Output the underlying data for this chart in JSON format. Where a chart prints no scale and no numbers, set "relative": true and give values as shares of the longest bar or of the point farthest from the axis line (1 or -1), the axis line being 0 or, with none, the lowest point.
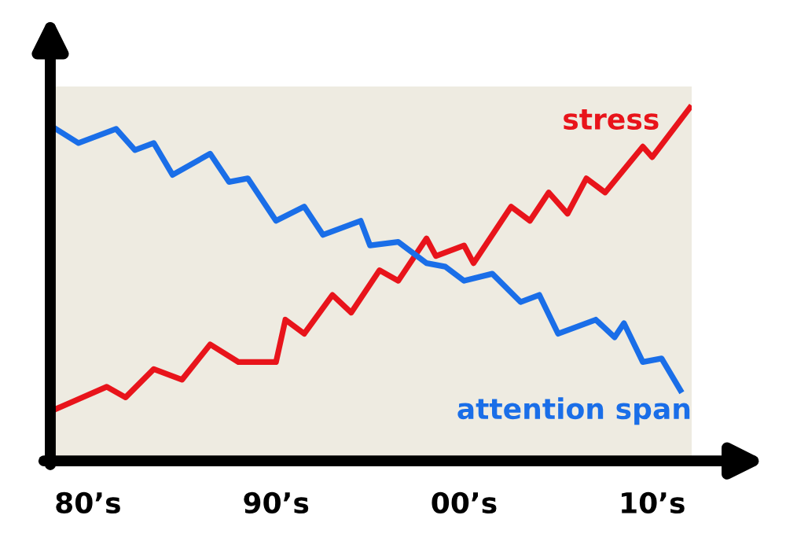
{
  "chart_data": {
    "type": "line",
    "relative": true,
    "categories": [
      null,
      null,
      null,
      null,
      "80’s",
      null,
      null,
      null,
      null,
      null,
      null,
      null,
      null,
      null,
      null,
      null,
      null,
      null,
      null,
      null,
      null,
      null,
      null,
      null,
      "90’s",
      null,
      null,
      null,
      null,
      null,
      null,
      null,
      null,
      null,
      null,
      null,
      null,
      null,
      null,
      null,
      null,
      null,
      null,
      null,
      "00’s",
      null,
      null,
      null,
      null,
      null,
      null,
      null,
      null,
      null,
      null,
      null,
      null,
      null,
      null,
      null,
      null,
      null,
      null,
      null,
      "10’s",
      null,
      null,
      null,
      null
    ],
    "series": [
      {
        "name": "stress",
        "color": "#e8141b",
        "values": [
          0.14,
          null,
          null,
          null,
          null,
          null,
          0.21,
          null,
          0.18,
          null,
          null,
          0.26,
          null,
          null,
          0.23,
          null,
          null,
          0.33,
          null,
          null,
          0.28,
          null,
          null,
          null,
          0.28,
          0.4,
          null,
          0.36,
          null,
          null,
          0.47,
          null,
          0.42,
          null,
          null,
          0.54,
          null,
          0.51,
          null,
          null,
          0.63,
          0.58,
          null,
          null,
          0.61,
          0.56,
          null,
          null,
          null,
          0.72,
          null,
          0.68,
          null,
          0.76,
          null,
          0.7,
          null,
          0.8,
          null,
          0.76,
          null,
          null,
          null,
          0.89,
          0.86,
          null,
          null,
          null,
          1.0
        ]
      },
      {
        "name": "attention span",
        "color": "#1a6ee8",
        "values": [
          0.95,
          null,
          null,
          0.9,
          null,
          null,
          null,
          0.94,
          null,
          0.88,
          null,
          0.9,
          null,
          0.81,
          null,
          null,
          null,
          0.87,
          null,
          0.79,
          null,
          0.8,
          null,
          null,
          0.68,
          null,
          null,
          0.72,
          null,
          0.64,
          null,
          null,
          null,
          0.68,
          0.61,
          null,
          null,
          0.62,
          null,
          null,
          0.56,
          null,
          0.55,
          null,
          0.51,
          null,
          null,
          0.53,
          null,
          null,
          0.45,
          null,
          0.47,
          null,
          0.36,
          null,
          null,
          null,
          0.4,
          null,
          0.35,
          0.39,
          null,
          0.28,
          null,
          0.29,
          null,
          0.2,
          null
        ]
      }
    ],
    "grid": false,
    "legend": false,
    "marker": "none",
    "line_style": "solid"
  }
}
